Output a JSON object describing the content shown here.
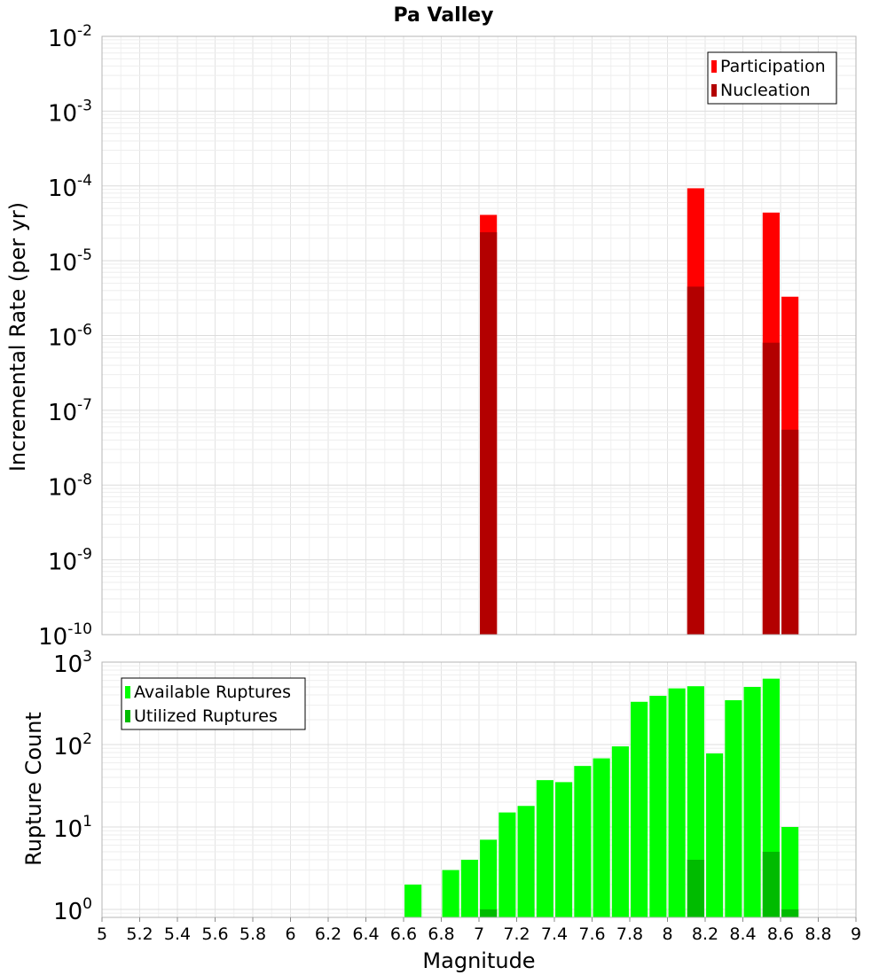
{
  "chart_data": [
    {
      "type": "bar",
      "title": "Pa Valley",
      "xlabel": "",
      "ylabel": "Incremental Rate (per yr)",
      "yscale": "log",
      "xlim": [
        5,
        9
      ],
      "ylim": [
        1e-10,
        0.01
      ],
      "y_tick_exponents": [
        "-10",
        "-9",
        "-8",
        "-7",
        "-6",
        "-5",
        "-4",
        "-3",
        "-2"
      ],
      "grid": true,
      "legend_position": "top-right",
      "bar_width": 0.09,
      "series": [
        {
          "name": "Participation",
          "color": "#ff0000",
          "x": [
            7.05,
            8.15,
            8.55,
            8.65
          ],
          "values": [
            4.1e-05,
            9.3e-05,
            4.4e-05,
            3.3e-06
          ]
        },
        {
          "name": "Nucleation",
          "color": "#b30000",
          "x": [
            7.05,
            8.15,
            8.55,
            8.65
          ],
          "values": [
            2.4e-05,
            4.5e-06,
            8e-07,
            5.5e-08
          ]
        }
      ]
    },
    {
      "type": "bar",
      "title": "",
      "xlabel": "Magnitude",
      "ylabel": "Rupture Count",
      "yscale": "log",
      "xlim": [
        5,
        9
      ],
      "ylim": [
        0.8,
        1000
      ],
      "y_tick_exponents": [
        "0",
        "1",
        "2",
        "3"
      ],
      "x_ticks": [
        "5",
        "5.2",
        "5.4",
        "5.6",
        "5.8",
        "6",
        "6.2",
        "6.4",
        "6.6",
        "6.8",
        "7",
        "7.2",
        "7.4",
        "7.6",
        "7.8",
        "8",
        "8.2",
        "8.4",
        "8.6",
        "8.8",
        "9"
      ],
      "grid": true,
      "legend_position": "top-left",
      "bar_width": 0.09,
      "series": [
        {
          "name": "Available Ruptures",
          "color": "#00ff00",
          "x": [
            6.65,
            6.85,
            6.95,
            7.05,
            7.15,
            7.25,
            7.35,
            7.45,
            7.55,
            7.65,
            7.75,
            7.85,
            7.95,
            8.05,
            8.15,
            8.25,
            8.35,
            8.45,
            8.55,
            8.65
          ],
          "values": [
            2,
            3,
            4,
            7,
            15,
            18,
            37,
            35,
            55,
            68,
            95,
            330,
            390,
            480,
            510,
            78,
            345,
            500,
            630,
            10
          ]
        },
        {
          "name": "Utilized Ruptures",
          "color": "#00bb00",
          "x": [
            7.05,
            8.15,
            8.55,
            8.65
          ],
          "values": [
            1,
            4,
            5,
            1
          ]
        }
      ]
    }
  ]
}
